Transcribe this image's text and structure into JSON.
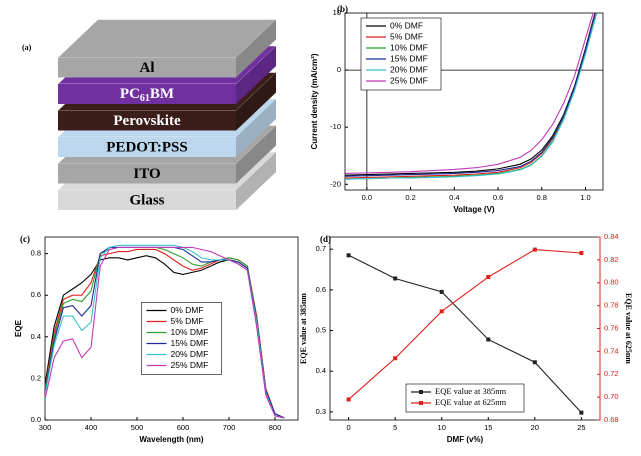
{
  "diagram": {
    "label": "(a)",
    "layers": [
      {
        "label": "Glass",
        "color": "#d9d9d9"
      },
      {
        "label": "ITO",
        "color": "#a6a6a6"
      },
      {
        "label": "PEDOT:PSS",
        "color": "#bdd7ee"
      },
      {
        "label": "Perovskite",
        "color": "#3b1e1a"
      },
      {
        "label": [
          "PC",
          "61",
          "BM"
        ],
        "color": "#7030a0"
      },
      {
        "label": "Al",
        "color": "#a6a6a6"
      }
    ]
  },
  "chart_data": [
    {
      "type": "line",
      "label": "(b)",
      "x_label": "Voltage (V)",
      "y_label": "Current density (mA/cm²)",
      "legend": "upper left",
      "zero_lines": true,
      "x": [
        -0.1,
        0,
        0.1,
        0.2,
        0.3,
        0.4,
        0.5,
        0.6,
        0.7,
        0.75,
        0.8,
        0.85,
        0.9,
        0.95,
        1.0,
        1.05
      ],
      "xlim": [
        -0.1,
        1.08
      ],
      "xticks": [
        {
          "value": 0,
          "label": "0.0"
        },
        0.2,
        0.4,
        0.6,
        0.8,
        {
          "value": 1,
          "label": "1.0"
        }
      ],
      "ylim": [
        -21,
        10
      ],
      "yticks": [
        -20,
        -10,
        0,
        10
      ],
      "series": [
        {
          "name": "0% DMF",
          "color": "#000000",
          "values": [
            -18.4,
            -18.3,
            -18.2,
            -18.1,
            -18.0,
            -17.9,
            -17.7,
            -17.3,
            -16.5,
            -15.6,
            -14.0,
            -11.5,
            -7.8,
            -2.8,
            3.8,
            11
          ]
        },
        {
          "name": "5% DMF",
          "color": "#e0201b",
          "values": [
            -18.9,
            -18.8,
            -18.7,
            -18.6,
            -18.5,
            -18.4,
            -18.2,
            -17.9,
            -17.1,
            -16.2,
            -14.6,
            -12.0,
            -8.2,
            -3.2,
            3.4,
            10.5
          ]
        },
        {
          "name": "10% DMF",
          "color": "#2ca02c",
          "values": [
            -19.1,
            -19.0,
            -18.9,
            -18.8,
            -18.7,
            -18.6,
            -18.4,
            -18.1,
            -17.4,
            -16.6,
            -15.0,
            -12.4,
            -8.5,
            -3.4,
            3.0,
            10
          ]
        },
        {
          "name": "15% DMF",
          "color": "#1f2a9c",
          "values": [
            -18.6,
            -18.5,
            -18.4,
            -18.3,
            -18.2,
            -18.1,
            -17.9,
            -17.6,
            -16.9,
            -16.0,
            -14.4,
            -11.8,
            -8.0,
            -3.0,
            3.5,
            11
          ]
        },
        {
          "name": "20% DMF",
          "color": "#3cc0d0",
          "values": [
            -19.1,
            -19.0,
            -18.9,
            -18.9,
            -18.8,
            -18.7,
            -18.5,
            -18.2,
            -17.5,
            -16.7,
            -15.1,
            -12.6,
            -8.7,
            -3.6,
            2.8,
            9.8
          ]
        },
        {
          "name": "25% DMF",
          "color": "#c03ab8",
          "values": [
            -18.1,
            -18.0,
            -17.9,
            -17.8,
            -17.6,
            -17.4,
            -17.1,
            -16.5,
            -15.3,
            -14.1,
            -12.2,
            -9.5,
            -5.8,
            -1.0,
            5.5,
            12
          ]
        }
      ]
    },
    {
      "type": "line",
      "label": "(c)",
      "x_label": "Wavelength (nm)",
      "y_label": "EQE",
      "legend": "center",
      "x": [
        300,
        320,
        340,
        360,
        380,
        400,
        420,
        440,
        460,
        480,
        500,
        520,
        540,
        560,
        580,
        600,
        620,
        640,
        660,
        680,
        700,
        720,
        740,
        760,
        780,
        800,
        820
      ],
      "xlim": [
        300,
        850
      ],
      "xticks": [
        300,
        400,
        500,
        600,
        700,
        800
      ],
      "ylim": [
        0,
        0.88
      ],
      "yticks": [
        {
          "value": 0,
          "label": "0.0"
        },
        0.2,
        0.4,
        0.6,
        0.8
      ],
      "series": [
        {
          "name": "0% DMF",
          "color": "#000000",
          "values": [
            0.17,
            0.45,
            0.6,
            0.63,
            0.66,
            0.7,
            0.77,
            0.78,
            0.78,
            0.77,
            0.78,
            0.79,
            0.78,
            0.75,
            0.71,
            0.7,
            0.71,
            0.72,
            0.74,
            0.76,
            0.77,
            0.76,
            0.73,
            0.5,
            0.15,
            0.03,
            0.01
          ]
        },
        {
          "name": "5% DMF",
          "color": "#e0201b",
          "values": [
            0.15,
            0.42,
            0.58,
            0.6,
            0.6,
            0.66,
            0.79,
            0.8,
            0.81,
            0.81,
            0.82,
            0.82,
            0.82,
            0.8,
            0.77,
            0.74,
            0.72,
            0.73,
            0.75,
            0.77,
            0.78,
            0.77,
            0.74,
            0.5,
            0.15,
            0.03,
            0.01
          ]
        },
        {
          "name": "10% DMF",
          "color": "#2ca02c",
          "values": [
            0.14,
            0.4,
            0.56,
            0.58,
            0.57,
            0.62,
            0.8,
            0.82,
            0.83,
            0.83,
            0.83,
            0.83,
            0.83,
            0.82,
            0.8,
            0.78,
            0.75,
            0.74,
            0.76,
            0.77,
            0.78,
            0.77,
            0.74,
            0.49,
            0.14,
            0.03,
            0.01
          ]
        },
        {
          "name": "15% DMF",
          "color": "#1f2a9c",
          "values": [
            0.13,
            0.38,
            0.54,
            0.55,
            0.5,
            0.55,
            0.8,
            0.83,
            0.83,
            0.83,
            0.83,
            0.83,
            0.83,
            0.83,
            0.83,
            0.82,
            0.79,
            0.76,
            0.76,
            0.77,
            0.77,
            0.76,
            0.73,
            0.48,
            0.14,
            0.03,
            0.01
          ]
        },
        {
          "name": "20% DMF",
          "color": "#3cc0d0",
          "values": [
            0.12,
            0.36,
            0.5,
            0.5,
            0.43,
            0.47,
            0.78,
            0.83,
            0.84,
            0.84,
            0.84,
            0.84,
            0.84,
            0.84,
            0.84,
            0.83,
            0.81,
            0.78,
            0.77,
            0.77,
            0.77,
            0.75,
            0.72,
            0.47,
            0.13,
            0.02,
            0.01
          ]
        },
        {
          "name": "25% DMF",
          "color": "#c03ab8",
          "values": [
            0.1,
            0.3,
            0.38,
            0.39,
            0.3,
            0.35,
            0.74,
            0.82,
            0.83,
            0.83,
            0.83,
            0.83,
            0.83,
            0.83,
            0.83,
            0.83,
            0.83,
            0.82,
            0.81,
            0.79,
            0.77,
            0.75,
            0.72,
            0.45,
            0.12,
            0.02,
            0.01
          ]
        }
      ]
    },
    {
      "type": "line",
      "label": "(d)",
      "x_label": "DMF (v%)",
      "y_label": "EQE value at 385nm",
      "y2_label": "EQE value at 625nm",
      "legend": "lower center",
      "markers": "square",
      "x": [
        0,
        5,
        10,
        15,
        20,
        25
      ],
      "xlim": [
        -2,
        27
      ],
      "xticks": [
        0,
        5,
        10,
        15,
        20,
        25
      ],
      "ylim": [
        0.28,
        0.73
      ],
      "yticks": [
        0.3,
        0.4,
        0.5,
        0.6,
        0.7
      ],
      "y2lim": [
        0.68,
        0.84
      ],
      "y2ticks": [
        0.68,
        {
          "value": 0.7,
          "label": "0.70"
        },
        0.72,
        0.74,
        0.76,
        0.78,
        {
          "value": 0.8,
          "label": "0.80"
        },
        0.82,
        0.84
      ],
      "series": [
        {
          "name": "EQE value at 385nm",
          "color": "#222222",
          "values": [
            0.685,
            0.628,
            0.595,
            0.478,
            0.422,
            0.298
          ]
        },
        {
          "name": "EQE value at 625nm",
          "color": "#e0201b",
          "axis": "y2",
          "values": [
            0.698,
            0.734,
            0.775,
            0.805,
            0.829,
            0.826
          ]
        }
      ]
    }
  ]
}
